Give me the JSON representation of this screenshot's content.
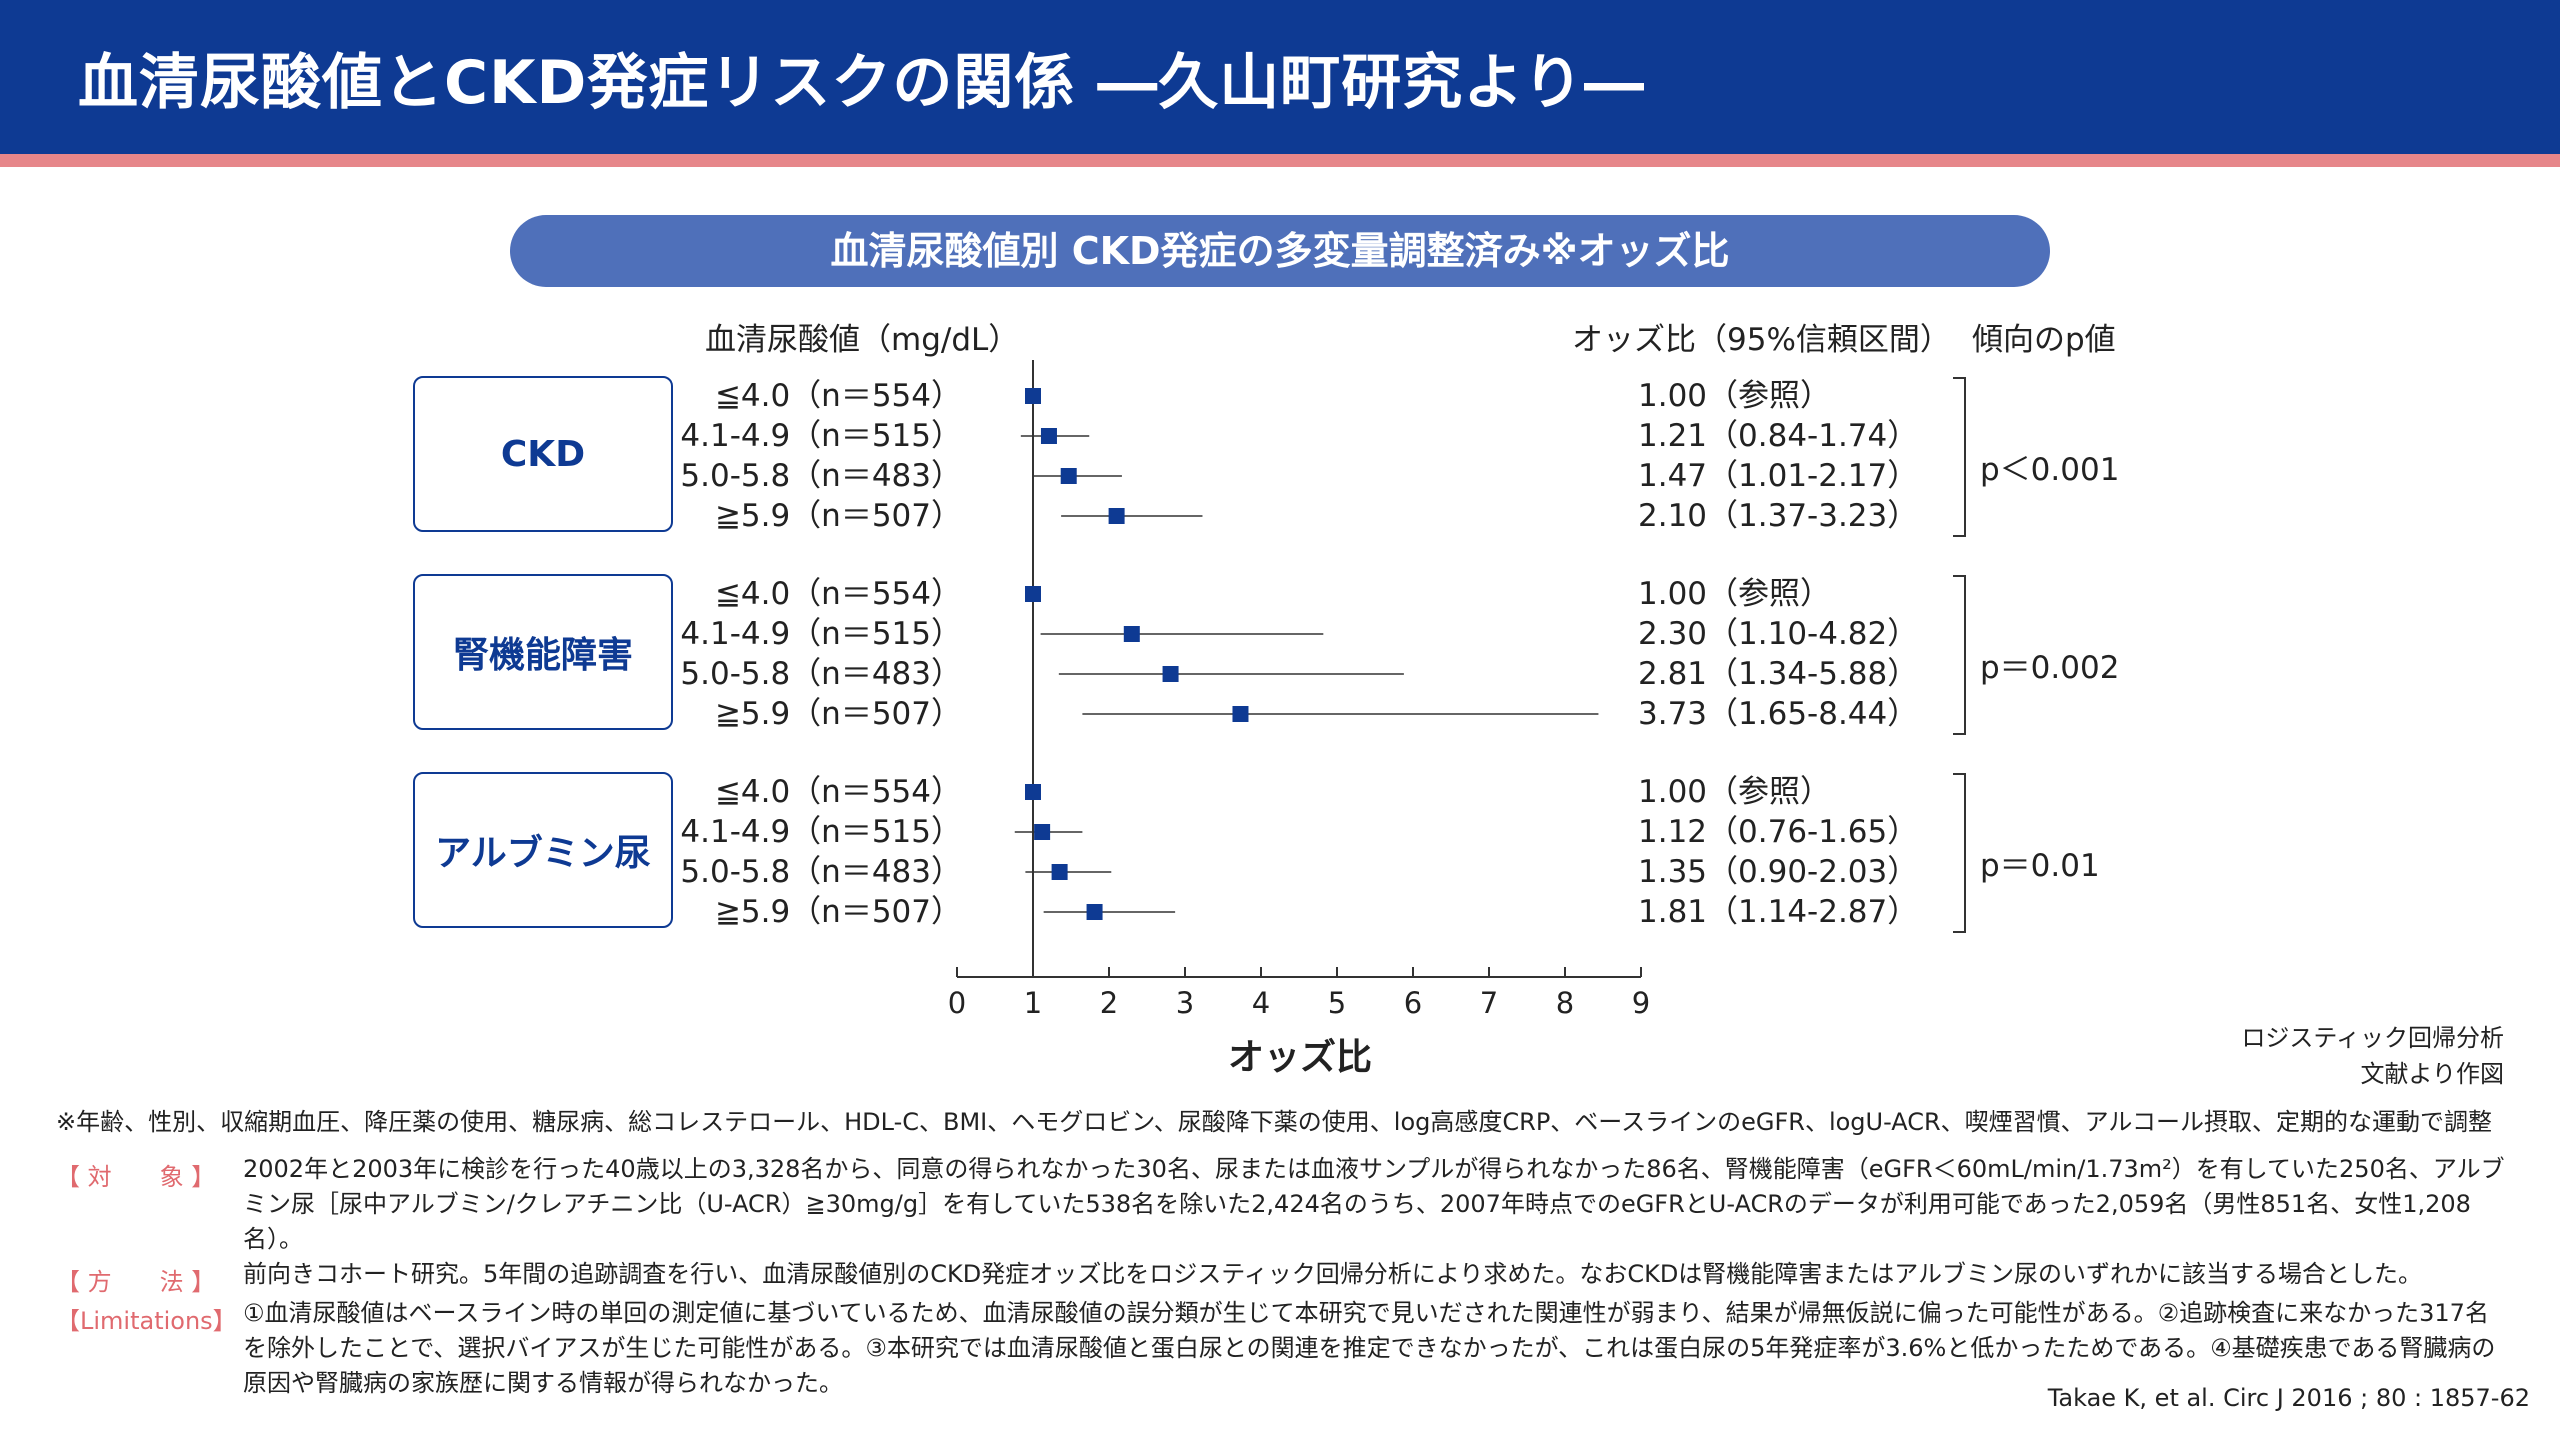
{
  "header": {
    "title": "血清尿酸値とCKD発症リスクの関係 ―久山町研究より―"
  },
  "subtitle": "血清尿酸値別 CKD発症の多変量調整済み※オッズ比",
  "columns": {
    "uric_acid": "血清尿酸値（mg/dL）",
    "odds_ratio": "オッズ比（95%信頼区間）",
    "trend_p": "傾向のp値"
  },
  "chart_data": {
    "type": "forest",
    "xlabel": "オッズ比",
    "xlim": [
      0,
      9
    ],
    "xticks": [
      0,
      1,
      2,
      3,
      4,
      5,
      6,
      7,
      8,
      9
    ],
    "reference_line": 1,
    "groups": [
      {
        "name": "CKD",
        "p_trend": "p＜0.001",
        "rows": [
          {
            "label": "≦4.0（n＝554）",
            "or": 1.0,
            "lo": null,
            "hi": null,
            "text": "1.00（参照）"
          },
          {
            "label": "4.1-4.9（n＝515）",
            "or": 1.21,
            "lo": 0.84,
            "hi": 1.74,
            "text": "1.21（0.84-1.74）"
          },
          {
            "label": "5.0-5.8（n＝483）",
            "or": 1.47,
            "lo": 1.01,
            "hi": 2.17,
            "text": "1.47（1.01-2.17）"
          },
          {
            "label": "≧5.9（n＝507）",
            "or": 2.1,
            "lo": 1.37,
            "hi": 3.23,
            "text": "2.10（1.37-3.23）"
          }
        ]
      },
      {
        "name": "腎機能障害",
        "p_trend": "p＝0.002",
        "rows": [
          {
            "label": "≦4.0（n＝554）",
            "or": 1.0,
            "lo": null,
            "hi": null,
            "text": "1.00（参照）"
          },
          {
            "label": "4.1-4.9（n＝515）",
            "or": 2.3,
            "lo": 1.1,
            "hi": 4.82,
            "text": "2.30（1.10-4.82）"
          },
          {
            "label": "5.0-5.8（n＝483）",
            "or": 2.81,
            "lo": 1.34,
            "hi": 5.88,
            "text": "2.81（1.34-5.88）"
          },
          {
            "label": "≧5.9（n＝507）",
            "or": 3.73,
            "lo": 1.65,
            "hi": 8.44,
            "text": "3.73（1.65-8.44）"
          }
        ]
      },
      {
        "name": "アルブミン尿",
        "p_trend": "p＝0.01",
        "rows": [
          {
            "label": "≦4.0（n＝554）",
            "or": 1.0,
            "lo": null,
            "hi": null,
            "text": "1.00（参照）"
          },
          {
            "label": "4.1-4.9（n＝515）",
            "or": 1.12,
            "lo": 0.76,
            "hi": 1.65,
            "text": "1.12（0.76-1.65）"
          },
          {
            "label": "5.0-5.8（n＝483）",
            "or": 1.35,
            "lo": 0.9,
            "hi": 2.03,
            "text": "1.35（0.90-2.03）"
          },
          {
            "label": "≧5.9（n＝507）",
            "or": 1.81,
            "lo": 1.14,
            "hi": 2.87,
            "text": "1.81（1.14-2.87）"
          }
        ]
      }
    ],
    "colors": {
      "marker": "#0e3a93",
      "line": "#333333"
    }
  },
  "method_note": "ロジスティック回帰分析",
  "source_note": "文献より作図",
  "footnote": "※年齢、性別、収縮期血圧、降圧薬の使用、糖尿病、総コレステロール、HDL-C、BMI、ヘモグロビン、尿酸降下薬の使用、log高感度CRP、ベースラインのeGFR、logU-ACR、喫煙習慣、アルコール摂取、定期的な運動で調整",
  "sections": {
    "target": {
      "label": "【 対　　象 】",
      "text": "2002年と2003年に検診を行った40歳以上の3,328名から、同意の得られなかった30名、尿または血液サンプルが得られなかった86名、腎機能障害（eGFR＜60mL/min/1.73m²）を有していた250名、アルブミン尿［尿中アルブミン/クレアチニン比（U-ACR）≧30mg/g］を有していた538名を除いた2,424名のうち、2007年時点でのeGFRとU-ACRのデータが利用可能であった2,059名（男性851名、女性1,208名）。"
    },
    "method": {
      "label": "【 方　　法 】",
      "text": "前向きコホート研究。5年間の追跡調査を行い、血清尿酸値別のCKD発症オッズ比をロジスティック回帰分析により求めた。なおCKDは腎機能障害またはアルブミン尿のいずれかに該当する場合とした。"
    },
    "limitations": {
      "label": "【Limitations】",
      "text": "①血清尿酸値はベースライン時の単回の測定値に基づいているため、血清尿酸値の誤分類が生じて本研究で見いだされた関連性が弱まり、結果が帰無仮説に偏った可能性がある。②追跡検査に来なかった317名を除外したことで、選択バイアスが生じた可能性がある。③本研究では血清尿酸値と蛋白尿との関連を推定できなかったが、これは蛋白尿の5年発症率が3.6%と低かったためである。④基礎疾患である腎臓病の原因や腎臓病の家族歴に関する情報が得られなかった。"
    }
  },
  "citation": "Takae K, et al. Circ J 2016 ; 80 : 1857-62"
}
